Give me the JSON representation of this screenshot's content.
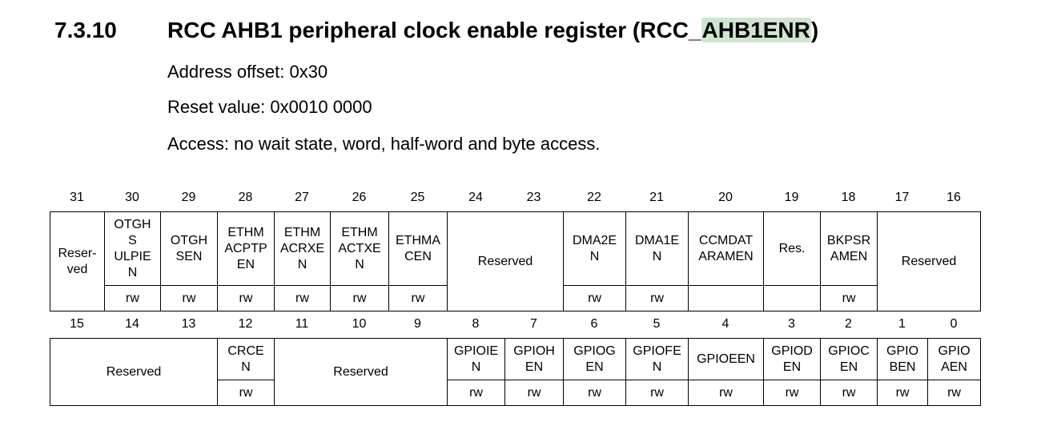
{
  "section": {
    "number": "7.3.10",
    "title_prefix": "RCC AHB1 peripheral clock enable register (RCC_",
    "title_highlight": "AHB1ENR",
    "title_suffix": ")"
  },
  "paragraphs": {
    "address_offset": "Address offset: 0x30",
    "reset_value": "Reset value: 0x0010 0000",
    "access": "Access: no wait state, word, half-word and byte access."
  },
  "register_upper": {
    "bit_numbers": [
      "31",
      "30",
      "29",
      "28",
      "27",
      "26",
      "25",
      "24",
      "23",
      "22",
      "21",
      "20",
      "19",
      "18",
      "17",
      "16"
    ],
    "fields": [
      {
        "name": "Reser-\nved",
        "access": ""
      },
      {
        "name": "OTGH\nS\nULPIE\nN",
        "access": "rw"
      },
      {
        "name": "OTGH\nSEN",
        "access": "rw"
      },
      {
        "name": "ETHM\nACPTP\nEN",
        "access": "rw"
      },
      {
        "name": "ETHM\nACRXE\nN",
        "access": "rw"
      },
      {
        "name": "ETHM\nACTXE\nN",
        "access": "rw"
      },
      {
        "name": "ETHMA\nCEN",
        "access": "rw"
      },
      {
        "name": "Reserved",
        "access": ""
      },
      {
        "name": "DMA2E\nN",
        "access": "rw"
      },
      {
        "name": "DMA1E\nN",
        "access": "rw"
      },
      {
        "name": "CCMDAT\nARAMEN",
        "access": ""
      },
      {
        "name": "Res.",
        "access": ""
      },
      {
        "name": "BKPSR\nAMEN",
        "access": "rw"
      },
      {
        "name": "Reserved",
        "access": ""
      }
    ]
  },
  "register_lower": {
    "bit_numbers": [
      "15",
      "14",
      "13",
      "12",
      "11",
      "10",
      "9",
      "8",
      "7",
      "6",
      "5",
      "4",
      "3",
      "2",
      "1",
      "0"
    ],
    "fields": [
      {
        "name": "Reserved",
        "access": ""
      },
      {
        "name": "CRCE\nN",
        "access": "rw"
      },
      {
        "name": "Reserved",
        "access": ""
      },
      {
        "name": "GPIOIE\nN",
        "access": "rw"
      },
      {
        "name": "GPIOH\nEN",
        "access": "rw"
      },
      {
        "name": "GPIOG\nEN",
        "access": "rw"
      },
      {
        "name": "GPIOFE\nN",
        "access": "rw"
      },
      {
        "name": "GPIOEEN",
        "access": "rw"
      },
      {
        "name": "GPIOD\nEN",
        "access": "rw"
      },
      {
        "name": "GPIOC\nEN",
        "access": "rw"
      },
      {
        "name": "GPIO\nBEN",
        "access": "rw"
      },
      {
        "name": "GPIO\nAEN",
        "access": "rw"
      }
    ]
  }
}
